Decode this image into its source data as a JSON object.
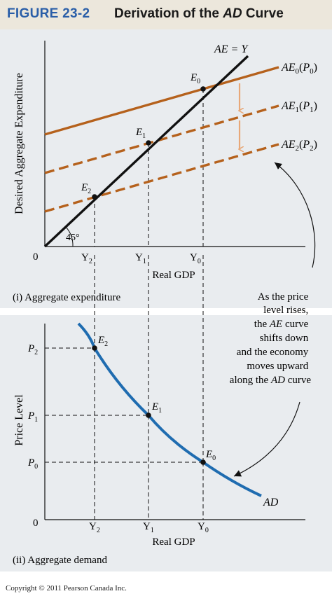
{
  "figure": {
    "number": "FIGURE 23-2",
    "title_prefix": "Derivation of the ",
    "title_italic": "AD",
    "title_suffix": " Curve"
  },
  "panel_i": {
    "caption": "(i) Aggregate expenditure",
    "y_axis_label": "Desired Aggregate Expenditure",
    "x_axis_label": "Real GDP",
    "origin": "0",
    "angle_label": "45°",
    "line_45_label": "AE = Y",
    "curves": [
      {
        "base": "AE",
        "sub": "0",
        "arg": "P",
        "arg_sub": "0",
        "style": "solid"
      },
      {
        "base": "AE",
        "sub": "1",
        "arg": "P",
        "arg_sub": "1",
        "style": "dashed"
      },
      {
        "base": "AE",
        "sub": "2",
        "arg": "P",
        "arg_sub": "2",
        "style": "dashed"
      }
    ],
    "equilibria": [
      {
        "base": "E",
        "sub": "0"
      },
      {
        "base": "E",
        "sub": "1"
      },
      {
        "base": "E",
        "sub": "2"
      }
    ],
    "x_ticks": [
      {
        "base": "Y",
        "sub": "2"
      },
      {
        "base": "Y",
        "sub": "1"
      },
      {
        "base": "Y",
        "sub": "0"
      }
    ]
  },
  "panel_ii": {
    "caption": "(ii) Aggregate demand",
    "y_axis_label": "Price Level",
    "x_axis_label": "Real GDP",
    "origin": "0",
    "curve_label": "AD",
    "points": [
      {
        "base": "E",
        "sub": "2"
      },
      {
        "base": "E",
        "sub": "1"
      },
      {
        "base": "E",
        "sub": "0"
      }
    ],
    "y_ticks": [
      {
        "base": "P",
        "sub": "2"
      },
      {
        "base": "P",
        "sub": "1"
      },
      {
        "base": "P",
        "sub": "0"
      }
    ],
    "x_ticks": [
      {
        "base": "Y",
        "sub": "2"
      },
      {
        "base": "Y",
        "sub": "1"
      },
      {
        "base": "Y",
        "sub": "0"
      }
    ]
  },
  "annotation": {
    "line1": "As the price",
    "line2": "level rises,",
    "line3_pre": "the ",
    "line3_italic": "AE",
    "line3_post": " curve",
    "line4": "shifts down",
    "line5": "and the economy",
    "line6": "moves upward",
    "line7_pre": "along the ",
    "line7_italic": "AD",
    "line7_post": " curve"
  },
  "copyright": "Copyright © 2011 Pearson Canada Inc.",
  "colors": {
    "header_bg": "#ece7dc",
    "figure_number": "#2a5ea8",
    "panel_bg": "#e9ecef",
    "ae_curves": "#b5611c",
    "shift_arrows": "#e8a878",
    "ad_curve": "#1f6cb0",
    "line_45": "#111111"
  }
}
